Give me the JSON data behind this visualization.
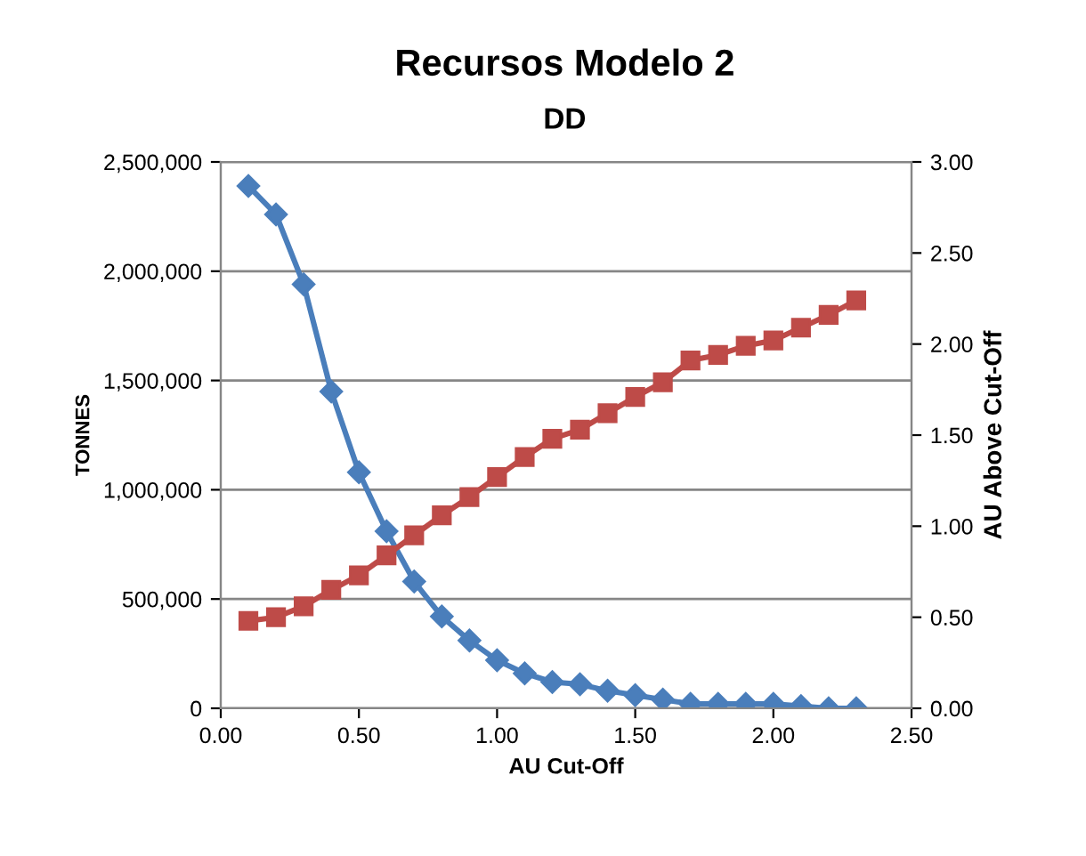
{
  "chart_data": {
    "type": "line",
    "title": "Recursos Modelo 2",
    "subtitle": "DD",
    "xlabel": "AU Cut-Off",
    "ylabel": "TONNES",
    "y2label": "AU Above Cut-Off",
    "x": [
      0.1,
      0.2,
      0.3,
      0.4,
      0.5,
      0.6,
      0.7,
      0.8,
      0.9,
      1.0,
      1.1,
      1.2,
      1.3,
      1.4,
      1.5,
      1.6,
      1.7,
      1.8,
      1.9,
      2.0,
      2.1,
      2.2,
      2.3
    ],
    "series": [
      {
        "color": "#4a7ebb",
        "marker": "diamond",
        "values": [
          2390000,
          2260000,
          1940000,
          1450000,
          1080000,
          810000,
          580000,
          420000,
          310000,
          220000,
          160000,
          120000,
          110000,
          80000,
          60000,
          40000,
          20000,
          20000,
          20000,
          20000,
          10000,
          0,
          0
        ]
      },
      {
        "color": "#be4b48",
        "marker": "square",
        "axis": "y2",
        "values": [
          0.48,
          0.5,
          0.56,
          0.65,
          0.73,
          0.84,
          0.95,
          1.06,
          1.16,
          1.27,
          1.38,
          1.48,
          1.53,
          1.62,
          1.71,
          1.79,
          1.91,
          1.94,
          1.99,
          2.02,
          2.09,
          2.16,
          2.24
        ]
      }
    ],
    "xlim": [
      0,
      2.5
    ],
    "xticks": [
      {
        "value": 0,
        "label": "0.00"
      },
      {
        "value": 0.5,
        "label": "0.50"
      },
      {
        "value": 1,
        "label": "1.00"
      },
      {
        "value": 1.5,
        "label": "1.50"
      },
      {
        "value": 2,
        "label": "2.00"
      },
      {
        "value": 2.5,
        "label": "2.50"
      }
    ],
    "ylim": [
      0,
      2500000
    ],
    "yticks": [
      {
        "value": 0,
        "label": "0"
      },
      {
        "value": 500000,
        "label": "500,000"
      },
      {
        "value": 1000000,
        "label": "1,000,000"
      },
      {
        "value": 1500000,
        "label": "1,500,000"
      },
      {
        "value": 2000000,
        "label": "2,000,000"
      },
      {
        "value": 2500000,
        "label": "2,500,000"
      }
    ],
    "y2lim": [
      0,
      3
    ],
    "y2ticks": [
      {
        "value": 0,
        "label": "0.00"
      },
      {
        "value": 0.5,
        "label": "0.50"
      },
      {
        "value": 1,
        "label": "1.00"
      },
      {
        "value": 1.5,
        "label": "1.50"
      },
      {
        "value": 2,
        "label": "2.00"
      },
      {
        "value": 2.5,
        "label": "2.50"
      },
      {
        "value": 3,
        "label": "3.00"
      }
    ],
    "grid": "y"
  }
}
